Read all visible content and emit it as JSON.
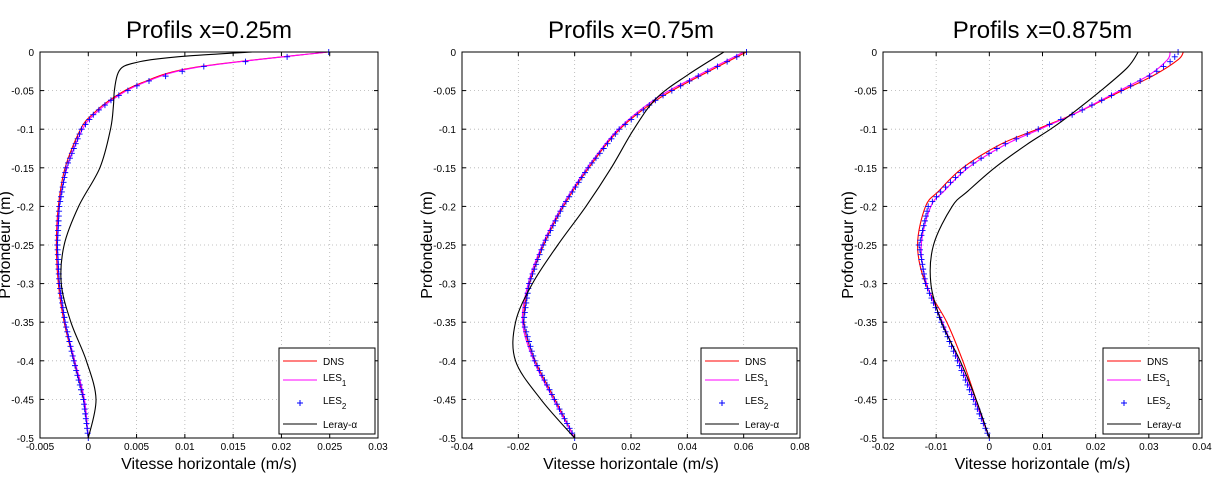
{
  "chart_data": [
    {
      "type": "line",
      "title": "Profils x=0.25m",
      "xlabel": "Vitesse horizontale (m/s)",
      "ylabel": "Profondeur (m)",
      "xlim": [
        -0.005,
        0.03
      ],
      "ylim": [
        -0.5,
        0
      ],
      "xticks": [
        -0.005,
        0,
        0.005,
        0.01,
        0.015,
        0.02,
        0.025,
        0.03
      ],
      "xtick_labels": [
        "-0.005",
        "0",
        "0.005",
        "0.01",
        "0.015",
        "0.02",
        "0.025",
        "0.03"
      ],
      "yticks": [
        -0.5,
        -0.45,
        -0.4,
        -0.35,
        -0.3,
        -0.25,
        -0.2,
        -0.15,
        -0.1,
        -0.05,
        0
      ],
      "ytick_labels": [
        "-0.5",
        "-0.45",
        "-0.4",
        "-0.35",
        "-0.3",
        "-0.25",
        "-0.2",
        "-0.15",
        "-0.1",
        "-0.05",
        "0"
      ],
      "grid": true,
      "legend_position": "bottom-right",
      "series": [
        {
          "name": "DNS",
          "color": "#ff0000",
          "style": "line",
          "y": [
            0,
            -0.02,
            -0.04,
            -0.06,
            -0.08,
            -0.1,
            -0.15,
            -0.2,
            -0.25,
            -0.3,
            -0.35,
            -0.4,
            -0.45,
            -0.5
          ],
          "x": [
            0.0248,
            0.011,
            0.0055,
            0.0025,
            0.0005,
            -0.0008,
            -0.0024,
            -0.0031,
            -0.0033,
            -0.0031,
            -0.0025,
            -0.0015,
            -0.0005,
            0.0
          ]
        },
        {
          "name": "LES1",
          "color": "#ff00ff",
          "style": "line",
          "y": [
            0,
            -0.02,
            -0.04,
            -0.06,
            -0.08,
            -0.1,
            -0.15,
            -0.2,
            -0.25,
            -0.3,
            -0.35,
            -0.4,
            -0.45,
            -0.5
          ],
          "x": [
            0.0248,
            0.0112,
            0.0057,
            0.0027,
            0.0007,
            -0.0006,
            -0.0022,
            -0.003,
            -0.0032,
            -0.003,
            -0.0024,
            -0.0014,
            -0.0004,
            0.0
          ]
        },
        {
          "name": "LES2",
          "color": "#0000ff",
          "style": "marker",
          "y": [
            0,
            -0.02,
            -0.04,
            -0.06,
            -0.08,
            -0.1,
            -0.15,
            -0.2,
            -0.25,
            -0.3,
            -0.35,
            -0.4,
            -0.45,
            -0.5
          ],
          "x": [
            0.0249,
            0.0111,
            0.0056,
            0.0026,
            0.0006,
            -0.0007,
            -0.0023,
            -0.003,
            -0.0032,
            -0.003,
            -0.0024,
            -0.0015,
            -0.0005,
            0.0
          ]
        },
        {
          "name": "Leray-α",
          "color": "#000000",
          "style": "line",
          "y": [
            0,
            -0.005,
            -0.01,
            -0.015,
            -0.02,
            -0.03,
            -0.05,
            -0.07,
            -0.1,
            -0.15,
            -0.2,
            -0.25,
            -0.3,
            -0.35,
            -0.4,
            -0.45,
            -0.5
          ],
          "x": [
            0.017,
            0.0105,
            0.0065,
            0.0045,
            0.0035,
            0.003,
            0.0027,
            0.0026,
            0.0023,
            0.0012,
            -0.001,
            -0.0025,
            -0.0028,
            -0.0018,
            -0.0002,
            0.0008,
            0.0
          ]
        }
      ]
    },
    {
      "type": "line",
      "title": "Profils x=0.75m",
      "xlabel": "Vitesse horizontale (m/s)",
      "ylabel": "Profondeur (m)",
      "xlim": [
        -0.04,
        0.08
      ],
      "ylim": [
        -0.5,
        0
      ],
      "xticks": [
        -0.04,
        -0.02,
        0,
        0.02,
        0.04,
        0.06,
        0.08
      ],
      "xtick_labels": [
        "-0.04",
        "-0.02",
        "0",
        "0.02",
        "0.04",
        "0.06",
        "0.08"
      ],
      "yticks": [
        -0.5,
        -0.45,
        -0.4,
        -0.35,
        -0.3,
        -0.25,
        -0.2,
        -0.15,
        -0.1,
        -0.05,
        0
      ],
      "ytick_labels": [
        "-0.5",
        "-0.45",
        "-0.4",
        "-0.35",
        "-0.3",
        "-0.25",
        "-0.2",
        "-0.15",
        "-0.1",
        "-0.05",
        "0"
      ],
      "grid": true,
      "legend_position": "bottom-right",
      "series": [
        {
          "name": "DNS",
          "color": "#ff0000",
          "style": "line",
          "y": [
            0,
            -0.03,
            -0.06,
            -0.1,
            -0.15,
            -0.2,
            -0.25,
            -0.3,
            -0.35,
            -0.4,
            -0.45,
            -0.5
          ],
          "x": [
            0.061,
            0.045,
            0.03,
            0.016,
            0.005,
            -0.004,
            -0.011,
            -0.016,
            -0.018,
            -0.014,
            -0.007,
            0.0
          ]
        },
        {
          "name": "LES1",
          "color": "#ff00ff",
          "style": "line",
          "y": [
            0,
            -0.03,
            -0.06,
            -0.1,
            -0.15,
            -0.2,
            -0.25,
            -0.3,
            -0.35,
            -0.4,
            -0.45,
            -0.5
          ],
          "x": [
            0.06,
            0.044,
            0.029,
            0.0155,
            0.0045,
            -0.0045,
            -0.0115,
            -0.0165,
            -0.0185,
            -0.0145,
            -0.0075,
            0.0
          ]
        },
        {
          "name": "LES2",
          "color": "#0000ff",
          "style": "marker",
          "y": [
            0,
            -0.03,
            -0.06,
            -0.1,
            -0.15,
            -0.2,
            -0.25,
            -0.3,
            -0.35,
            -0.4,
            -0.45,
            -0.5
          ],
          "x": [
            0.061,
            0.0445,
            0.0295,
            0.0158,
            0.0048,
            -0.0042,
            -0.0112,
            -0.0162,
            -0.0182,
            -0.0142,
            -0.0072,
            0.0
          ]
        },
        {
          "name": "Leray-α",
          "color": "#000000",
          "style": "line",
          "y": [
            0,
            -0.03,
            -0.06,
            -0.1,
            -0.15,
            -0.2,
            -0.25,
            -0.3,
            -0.35,
            -0.4,
            -0.45,
            -0.5
          ],
          "x": [
            0.053,
            0.04,
            0.029,
            0.021,
            0.013,
            0.004,
            -0.006,
            -0.015,
            -0.021,
            -0.021,
            -0.012,
            0.0
          ]
        }
      ]
    },
    {
      "type": "line",
      "title": "Profils x=0.875m",
      "xlabel": "Vitesse horizontale (m/s)",
      "ylabel": "Profondeur (m)",
      "xlim": [
        -0.02,
        0.04
      ],
      "ylim": [
        -0.5,
        0
      ],
      "xticks": [
        -0.02,
        -0.01,
        0,
        0.01,
        0.02,
        0.03,
        0.04
      ],
      "xtick_labels": [
        "-0.02",
        "-0.01",
        "0",
        "0.01",
        "0.02",
        "0.03",
        "0.04"
      ],
      "yticks": [
        -0.5,
        -0.45,
        -0.4,
        -0.35,
        -0.3,
        -0.25,
        -0.2,
        -0.15,
        -0.1,
        -0.05,
        0
      ],
      "ytick_labels": [
        "-0.5",
        "-0.45",
        "-0.4",
        "-0.35",
        "-0.3",
        "-0.25",
        "-0.2",
        "-0.15",
        "-0.1",
        "-0.05",
        "0"
      ],
      "grid": true,
      "legend_position": "bottom-right",
      "series": [
        {
          "name": "DNS",
          "color": "#ff0000",
          "style": "line",
          "y": [
            0,
            -0.01,
            -0.03,
            -0.05,
            -0.08,
            -0.1,
            -0.12,
            -0.15,
            -0.18,
            -0.2,
            -0.25,
            -0.3,
            -0.35,
            -0.4,
            -0.45,
            -0.5
          ],
          "x": [
            0.0365,
            0.0355,
            0.031,
            0.025,
            0.016,
            0.009,
            0.002,
            -0.005,
            -0.0095,
            -0.012,
            -0.0135,
            -0.012,
            -0.008,
            -0.005,
            -0.0025,
            0.0
          ]
        },
        {
          "name": "LES1",
          "color": "#ff00ff",
          "style": "line",
          "y": [
            0,
            -0.01,
            -0.03,
            -0.05,
            -0.08,
            -0.1,
            -0.12,
            -0.15,
            -0.18,
            -0.2,
            -0.25,
            -0.3,
            -0.35,
            -0.4,
            -0.45,
            -0.5
          ],
          "x": [
            0.034,
            0.0335,
            0.03,
            0.0245,
            0.016,
            0.0095,
            0.003,
            -0.004,
            -0.0085,
            -0.011,
            -0.0128,
            -0.0118,
            -0.0088,
            -0.0058,
            -0.0028,
            0.0
          ]
        },
        {
          "name": "LES2",
          "color": "#0000ff",
          "style": "marker",
          "y": [
            0,
            -0.01,
            -0.03,
            -0.05,
            -0.08,
            -0.1,
            -0.12,
            -0.15,
            -0.18,
            -0.2,
            -0.25,
            -0.3,
            -0.35,
            -0.4,
            -0.45,
            -0.5
          ],
          "x": [
            0.0355,
            0.0345,
            0.0305,
            0.0248,
            0.016,
            0.0092,
            0.0026,
            -0.0045,
            -0.009,
            -0.0115,
            -0.0132,
            -0.012,
            -0.009,
            -0.006,
            -0.003,
            0.0
          ]
        },
        {
          "name": "Leray-α",
          "color": "#000000",
          "style": "line",
          "y": [
            0,
            -0.02,
            -0.05,
            -0.08,
            -0.1,
            -0.12,
            -0.15,
            -0.18,
            -0.2,
            -0.25,
            -0.3,
            -0.35,
            -0.4,
            -0.45,
            -0.5
          ],
          "x": [
            0.028,
            0.026,
            0.021,
            0.0155,
            0.0115,
            0.007,
            0.001,
            -0.004,
            -0.007,
            -0.0105,
            -0.011,
            -0.009,
            -0.0055,
            -0.0025,
            0.0
          ]
        }
      ]
    }
  ]
}
